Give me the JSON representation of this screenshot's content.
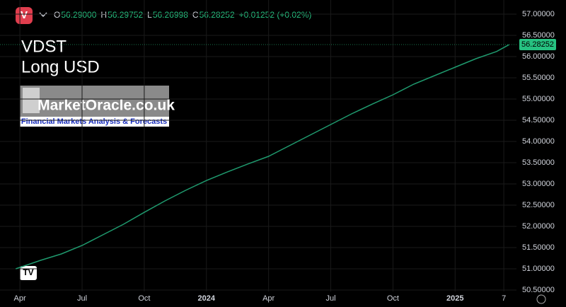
{
  "header": {
    "symbol_icon": "V",
    "items": [
      {
        "label": "O",
        "value": "56.29000"
      },
      {
        "label": "H",
        "value": "56.29752"
      },
      {
        "label": "L",
        "value": "56.26998"
      },
      {
        "label": "C",
        "value": "56.28252"
      }
    ],
    "change": "+0.01252 (+0.02%)"
  },
  "chart_data": {
    "type": "line",
    "title": "VDST",
    "subtitle": "Long USD",
    "logo": {
      "name": "MarketOracle.co.uk",
      "tagline": "Financial Markets Analysis & Forecasts"
    },
    "x": [
      -0.2,
      1,
      2,
      3,
      4,
      5,
      6,
      7,
      8,
      9,
      10,
      11,
      12,
      13,
      14,
      15,
      16,
      17,
      18,
      19,
      20,
      21,
      22,
      23,
      23.6
    ],
    "series": [
      {
        "name": "VDST",
        "color": "#1f9a6e",
        "values": [
          51.0,
          51.2,
          51.35,
          51.55,
          51.8,
          52.05,
          52.33,
          52.6,
          52.85,
          53.08,
          53.28,
          53.47,
          53.65,
          53.9,
          54.15,
          54.4,
          54.65,
          54.88,
          55.1,
          55.35,
          55.55,
          55.75,
          55.95,
          56.12,
          56.28
        ]
      }
    ],
    "last_price": 56.28252,
    "xlim": [
      -0.96,
      23.96
    ],
    "xticks": [
      {
        "value": 0,
        "label": "Apr"
      },
      {
        "value": 3,
        "label": "Jul"
      },
      {
        "value": 6,
        "label": "Oct"
      },
      {
        "value": 9,
        "label": "2024"
      },
      {
        "value": 12,
        "label": "Apr"
      },
      {
        "value": 15,
        "label": "Jul"
      },
      {
        "value": 18,
        "label": "Oct"
      },
      {
        "value": 21,
        "label": "2025"
      },
      {
        "value": 23.35,
        "label": "7"
      }
    ],
    "ylim": [
      50.5,
      57.0
    ],
    "yticks": [
      {
        "value": 50.5,
        "label": "50.50000"
      },
      {
        "value": 51,
        "label": "51.00000"
      },
      {
        "value": 51.5,
        "label": "51.50000"
      },
      {
        "value": 52,
        "label": "52.00000"
      },
      {
        "value": 52.5,
        "label": "52.50000"
      },
      {
        "value": 53,
        "label": "53.00000"
      },
      {
        "value": 53.5,
        "label": "53.50000"
      },
      {
        "value": 54,
        "label": "54.00000"
      },
      {
        "value": 54.5,
        "label": "54.50000"
      },
      {
        "value": 55,
        "label": "55.00000"
      },
      {
        "value": 55.5,
        "label": "55.50000"
      },
      {
        "value": 56,
        "label": "56.00000"
      },
      {
        "value": 56.5,
        "label": "56.50000"
      },
      {
        "value": 57,
        "label": "57.00000"
      }
    ],
    "grid": true
  }
}
